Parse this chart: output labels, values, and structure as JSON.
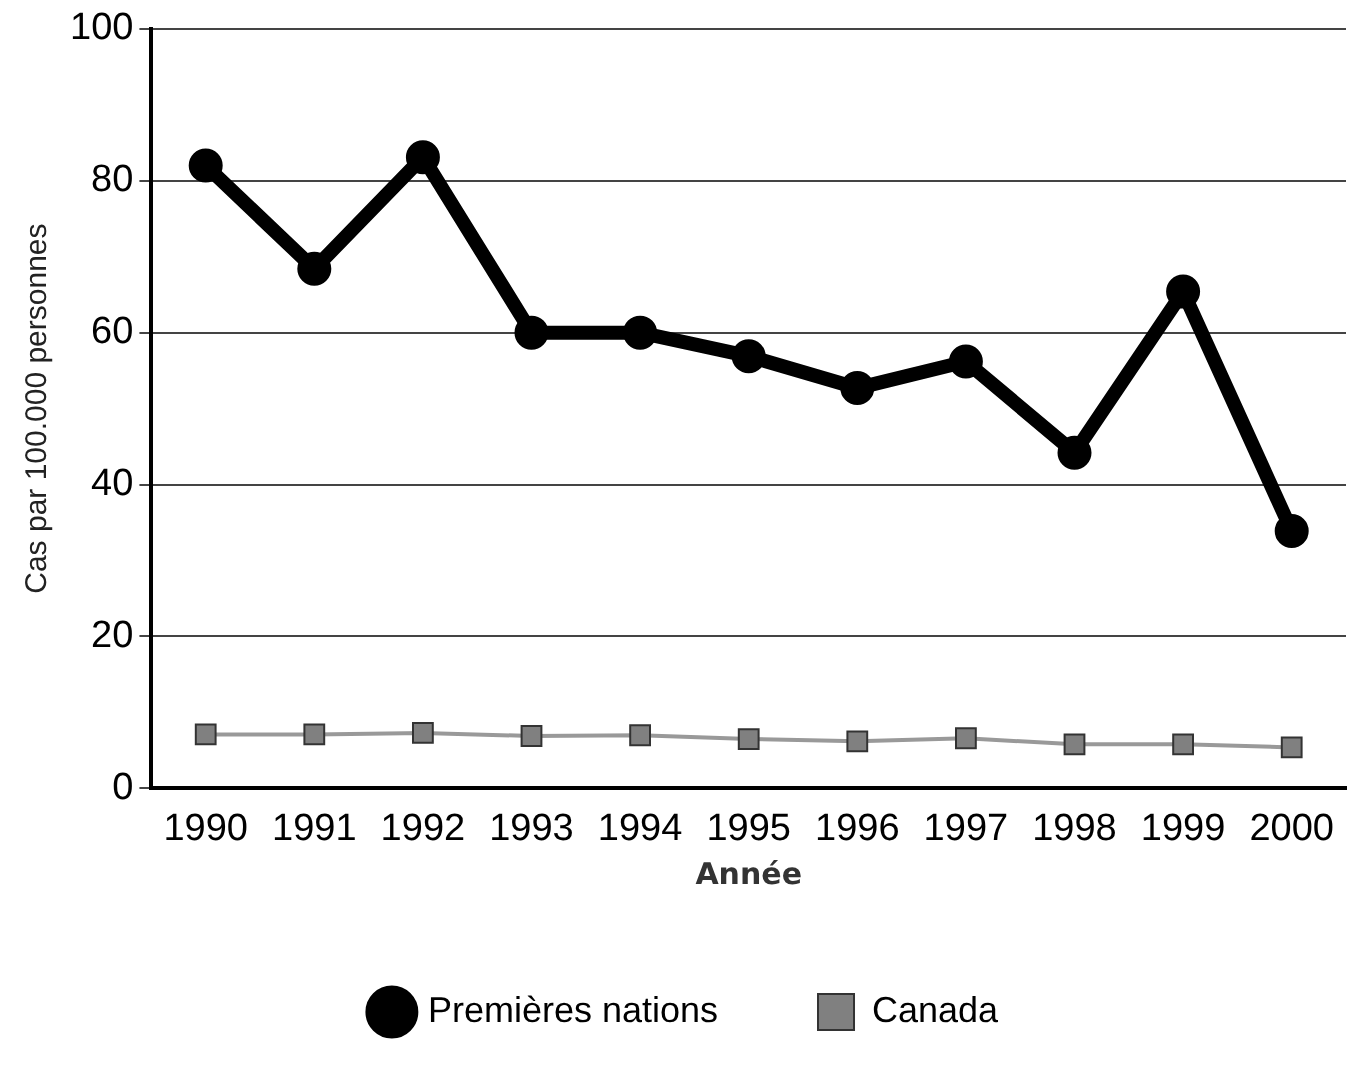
{
  "chart_data": {
    "type": "line",
    "xlabel": "Année",
    "ylabel": "Cas par 100.000 personnes",
    "categories": [
      "1990",
      "1991",
      "1992",
      "1993",
      "1994",
      "1995",
      "1996",
      "1997",
      "1998",
      "1999",
      "2000"
    ],
    "series": [
      {
        "name": "Premières nations",
        "color": "#000000",
        "marker": "circle",
        "values": [
          82,
          68.4,
          83.1,
          60,
          60,
          56.9,
          52.7,
          56.2,
          44.2,
          65.4,
          33.9
        ]
      },
      {
        "name": "Canada",
        "color": "#808080",
        "marker": "square",
        "values": [
          7.1,
          7.1,
          7.3,
          6.9,
          7.0,
          6.5,
          6.2,
          6.6,
          5.8,
          5.8,
          5.4
        ]
      }
    ],
    "ylim": [
      0,
      100
    ],
    "yticks": [
      0,
      20,
      40,
      60,
      80,
      100
    ],
    "grid": "y",
    "legend": "bottom"
  }
}
